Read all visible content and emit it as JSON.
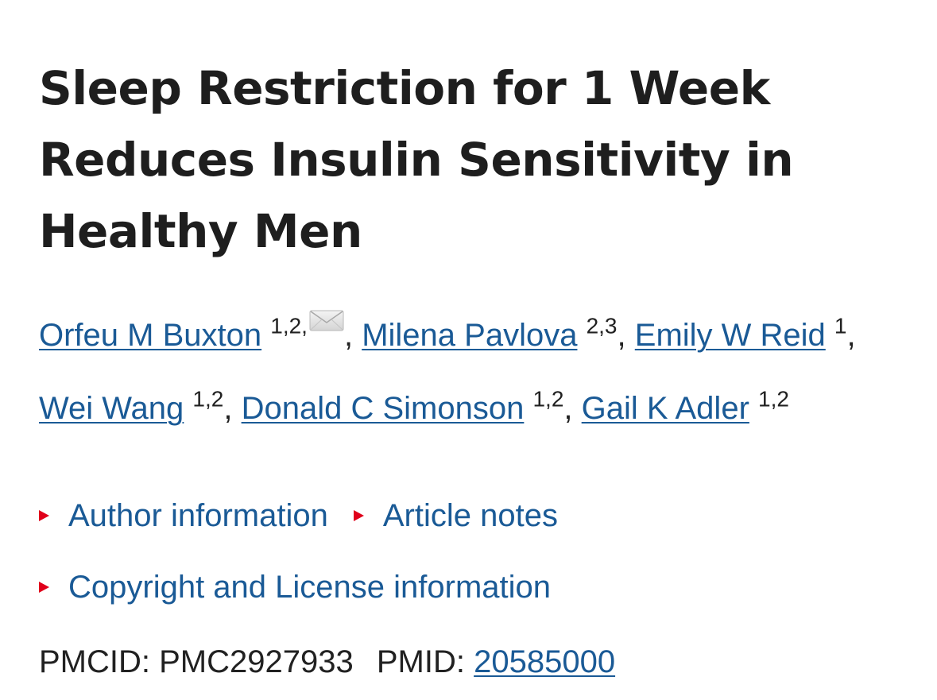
{
  "article": {
    "title": "Sleep Restriction for 1 Week Reduces Insulin Sensitivity in Healthy Men",
    "authors": [
      {
        "name": "Orfeu M Buxton",
        "affiliations": "1,2,",
        "corresponding": true
      },
      {
        "name": "Milena Pavlova",
        "affiliations": "2,3"
      },
      {
        "name": "Emily W Reid",
        "affiliations": "1"
      },
      {
        "name": "Wei Wang",
        "affiliations": "1,2"
      },
      {
        "name": "Donald C Simonson",
        "affiliations": "1,2"
      },
      {
        "name": "Gail K Adler",
        "affiliations": "1,2"
      }
    ],
    "separator": ",",
    "toggles": {
      "author_information": "Author information",
      "article_notes": "Article notes",
      "copyright": "Copyright and License information"
    },
    "ids": {
      "pmcid_label": "PMCID:",
      "pmcid_value": "PMC2927933",
      "pmid_label": "PMID:",
      "pmid_value": "20585000"
    },
    "colors": {
      "link": "#1a5a96",
      "toggle_marker": "#e0001b",
      "text": "#212121"
    },
    "icons": {
      "corresponding_author": "envelope-icon",
      "toggle_marker": "triangle-right-icon"
    }
  }
}
